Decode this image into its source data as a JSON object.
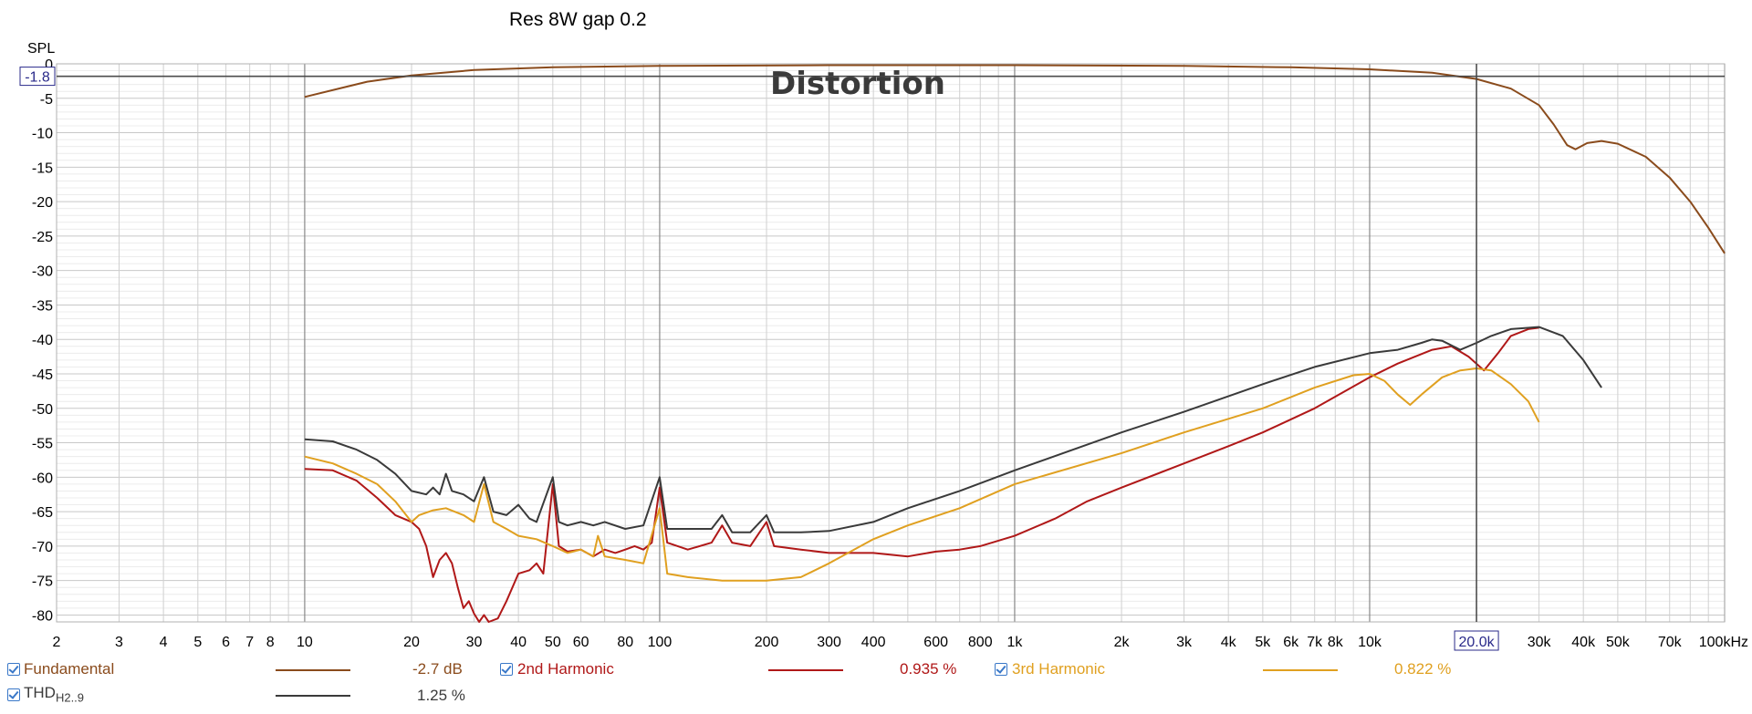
{
  "chart_data": {
    "type": "line",
    "title": "Res 8W gap 0.2",
    "overlay_label": "Distortion",
    "ylabel": "SPL",
    "ylim": [
      -81,
      0
    ],
    "xlim": [
      2,
      100000
    ],
    "xscale": "log",
    "grid": true,
    "cursor": {
      "x_label": "20.0k",
      "y_label": "-1.8",
      "x": 20000,
      "y": -1.8
    },
    "y_ticks": [
      0,
      -5,
      -10,
      -15,
      -20,
      -25,
      -30,
      -35,
      -40,
      -45,
      -50,
      -55,
      -60,
      -65,
      -70,
      -75,
      -80
    ],
    "y_tick_labels": [
      "0",
      "-5",
      "-10",
      "-15",
      "-20",
      "-25",
      "-30",
      "-35",
      "-40",
      "-45",
      "-50",
      "-55",
      "-60",
      "-65",
      "-70",
      "-75",
      "-80"
    ],
    "x_ticks": [
      2,
      3,
      4,
      5,
      6,
      7,
      8,
      10,
      20,
      30,
      40,
      50,
      60,
      80,
      100,
      200,
      300,
      400,
      600,
      800,
      1000,
      2000,
      3000,
      4000,
      5000,
      6000,
      7000,
      8000,
      10000,
      30000,
      40000,
      50000,
      70000,
      100000
    ],
    "x_tick_labels": [
      "2",
      "3",
      "4",
      "5",
      "6",
      "7",
      "8",
      "10",
      "20",
      "30",
      "40",
      "50",
      "60",
      "80",
      "100",
      "200",
      "300",
      "400",
      "600",
      "800",
      "1k",
      "2k",
      "3k",
      "4k",
      "5k",
      "6k",
      "7k",
      "8k",
      "10k",
      "30k",
      "40k",
      "50k",
      "70k",
      "100kHz"
    ],
    "series": [
      {
        "name": "Fundamental",
        "color": "#8a4b1c",
        "legend_value": "-2.7 dB",
        "points": [
          [
            10,
            -4.8
          ],
          [
            15,
            -2.6
          ],
          [
            20,
            -1.7
          ],
          [
            30,
            -0.9
          ],
          [
            50,
            -0.5
          ],
          [
            100,
            -0.3
          ],
          [
            300,
            -0.2
          ],
          [
            1000,
            -0.2
          ],
          [
            3000,
            -0.3
          ],
          [
            6000,
            -0.5
          ],
          [
            10000,
            -0.8
          ],
          [
            15000,
            -1.3
          ],
          [
            20000,
            -2.2
          ],
          [
            25000,
            -3.6
          ],
          [
            30000,
            -6.0
          ],
          [
            33000,
            -8.8
          ],
          [
            36000,
            -11.8
          ],
          [
            38000,
            -12.4
          ],
          [
            41000,
            -11.5
          ],
          [
            45000,
            -11.2
          ],
          [
            50000,
            -11.6
          ],
          [
            60000,
            -13.5
          ],
          [
            70000,
            -16.5
          ],
          [
            80000,
            -20.0
          ],
          [
            90000,
            -23.8
          ],
          [
            100000,
            -27.5
          ]
        ]
      },
      {
        "name": "2nd Harmonic",
        "color": "#b01818",
        "legend_value": "0.935 %",
        "points": [
          [
            10,
            -58.8
          ],
          [
            12,
            -59.0
          ],
          [
            14,
            -60.5
          ],
          [
            16,
            -63.0
          ],
          [
            18,
            -65.5
          ],
          [
            20,
            -66.5
          ],
          [
            21,
            -67.5
          ],
          [
            22,
            -70.0
          ],
          [
            23,
            -74.5
          ],
          [
            24,
            -72.0
          ],
          [
            25,
            -71.0
          ],
          [
            26,
            -72.5
          ],
          [
            27,
            -76.0
          ],
          [
            28,
            -79.0
          ],
          [
            29,
            -78.0
          ],
          [
            30,
            -79.8
          ],
          [
            31,
            -81.0
          ],
          [
            32,
            -80.0
          ],
          [
            33,
            -81.0
          ],
          [
            35,
            -80.5
          ],
          [
            37,
            -78.0
          ],
          [
            40,
            -74.0
          ],
          [
            43,
            -73.5
          ],
          [
            45,
            -72.5
          ],
          [
            47,
            -74.0
          ],
          [
            50,
            -61.0
          ],
          [
            52,
            -70.0
          ],
          [
            55,
            -70.8
          ],
          [
            60,
            -70.5
          ],
          [
            65,
            -71.5
          ],
          [
            70,
            -70.5
          ],
          [
            75,
            -71.0
          ],
          [
            80,
            -70.5
          ],
          [
            85,
            -70.0
          ],
          [
            90,
            -70.5
          ],
          [
            95,
            -69.5
          ],
          [
            100,
            -61.5
          ],
          [
            105,
            -69.5
          ],
          [
            120,
            -70.5
          ],
          [
            140,
            -69.5
          ],
          [
            150,
            -67.0
          ],
          [
            160,
            -69.5
          ],
          [
            180,
            -70.0
          ],
          [
            200,
            -66.5
          ],
          [
            210,
            -70.0
          ],
          [
            250,
            -70.5
          ],
          [
            300,
            -71.0
          ],
          [
            400,
            -71.0
          ],
          [
            500,
            -71.5
          ],
          [
            600,
            -70.8
          ],
          [
            700,
            -70.5
          ],
          [
            800,
            -70.0
          ],
          [
            1000,
            -68.5
          ],
          [
            1300,
            -66.0
          ],
          [
            1600,
            -63.5
          ],
          [
            2000,
            -61.5
          ],
          [
            3000,
            -58.0
          ],
          [
            4000,
            -55.5
          ],
          [
            5000,
            -53.5
          ],
          [
            7000,
            -50.0
          ],
          [
            10000,
            -45.5
          ],
          [
            12000,
            -43.5
          ],
          [
            15000,
            -41.5
          ],
          [
            17000,
            -41.0
          ],
          [
            19000,
            -42.5
          ],
          [
            21000,
            -44.5
          ],
          [
            23000,
            -42.0
          ],
          [
            25000,
            -39.5
          ],
          [
            28000,
            -38.5
          ],
          [
            30000,
            -38.3
          ]
        ]
      },
      {
        "name": "3rd Harmonic",
        "color": "#e0a020",
        "legend_value": "0.822 %",
        "points": [
          [
            10,
            -57.0
          ],
          [
            12,
            -58.0
          ],
          [
            14,
            -59.5
          ],
          [
            16,
            -61.0
          ],
          [
            18,
            -63.5
          ],
          [
            20,
            -66.5
          ],
          [
            21,
            -65.5
          ],
          [
            23,
            -64.8
          ],
          [
            25,
            -64.5
          ],
          [
            28,
            -65.5
          ],
          [
            30,
            -66.5
          ],
          [
            32,
            -61.0
          ],
          [
            34,
            -66.5
          ],
          [
            37,
            -67.5
          ],
          [
            40,
            -68.5
          ],
          [
            45,
            -69.0
          ],
          [
            50,
            -70.0
          ],
          [
            55,
            -71.0
          ],
          [
            60,
            -70.5
          ],
          [
            65,
            -71.5
          ],
          [
            67,
            -68.5
          ],
          [
            70,
            -71.5
          ],
          [
            80,
            -72.0
          ],
          [
            90,
            -72.5
          ],
          [
            100,
            -64.5
          ],
          [
            105,
            -74.0
          ],
          [
            120,
            -74.5
          ],
          [
            150,
            -75.0
          ],
          [
            200,
            -75.0
          ],
          [
            250,
            -74.5
          ],
          [
            300,
            -72.5
          ],
          [
            400,
            -69.0
          ],
          [
            500,
            -67.0
          ],
          [
            700,
            -64.5
          ],
          [
            1000,
            -61.0
          ],
          [
            2000,
            -56.5
          ],
          [
            3000,
            -53.5
          ],
          [
            5000,
            -50.0
          ],
          [
            7000,
            -47.0
          ],
          [
            9000,
            -45.2
          ],
          [
            10000,
            -45.0
          ],
          [
            11000,
            -46.0
          ],
          [
            12000,
            -48.0
          ],
          [
            13000,
            -49.5
          ],
          [
            14000,
            -48.0
          ],
          [
            16000,
            -45.5
          ],
          [
            18000,
            -44.5
          ],
          [
            20000,
            -44.2
          ],
          [
            22000,
            -44.5
          ],
          [
            25000,
            -46.5
          ],
          [
            28000,
            -49.0
          ],
          [
            30000,
            -52.0
          ]
        ]
      },
      {
        "name": "THD",
        "name_sub": "H2..9",
        "color": "#3a3a3a",
        "legend_value": "1.25 %",
        "points": [
          [
            10,
            -54.5
          ],
          [
            12,
            -54.8
          ],
          [
            14,
            -56.0
          ],
          [
            16,
            -57.5
          ],
          [
            18,
            -59.5
          ],
          [
            20,
            -62.0
          ],
          [
            22,
            -62.5
          ],
          [
            23,
            -61.5
          ],
          [
            24,
            -62.5
          ],
          [
            25,
            -59.5
          ],
          [
            26,
            -62.0
          ],
          [
            28,
            -62.5
          ],
          [
            30,
            -63.5
          ],
          [
            32,
            -60.0
          ],
          [
            34,
            -65.0
          ],
          [
            37,
            -65.5
          ],
          [
            40,
            -64.0
          ],
          [
            43,
            -66.0
          ],
          [
            45,
            -66.5
          ],
          [
            50,
            -60.0
          ],
          [
            52,
            -66.5
          ],
          [
            55,
            -67.0
          ],
          [
            60,
            -66.5
          ],
          [
            65,
            -67.0
          ],
          [
            70,
            -66.5
          ],
          [
            80,
            -67.5
          ],
          [
            90,
            -67.0
          ],
          [
            100,
            -60.0
          ],
          [
            105,
            -67.5
          ],
          [
            120,
            -67.5
          ],
          [
            140,
            -67.5
          ],
          [
            150,
            -65.5
          ],
          [
            160,
            -68.0
          ],
          [
            180,
            -68.0
          ],
          [
            200,
            -65.5
          ],
          [
            210,
            -68.0
          ],
          [
            250,
            -68.0
          ],
          [
            300,
            -67.8
          ],
          [
            400,
            -66.5
          ],
          [
            500,
            -64.5
          ],
          [
            700,
            -62.0
          ],
          [
            1000,
            -59.0
          ],
          [
            2000,
            -53.5
          ],
          [
            3000,
            -50.5
          ],
          [
            5000,
            -46.5
          ],
          [
            7000,
            -44.0
          ],
          [
            10000,
            -42.0
          ],
          [
            12000,
            -41.5
          ],
          [
            14000,
            -40.5
          ],
          [
            15000,
            -40.0
          ],
          [
            16000,
            -40.2
          ],
          [
            18000,
            -41.5
          ],
          [
            20000,
            -40.5
          ],
          [
            22000,
            -39.5
          ],
          [
            25000,
            -38.5
          ],
          [
            30000,
            -38.2
          ],
          [
            35000,
            -39.5
          ],
          [
            40000,
            -43.0
          ],
          [
            45000,
            -47.0
          ]
        ]
      }
    ]
  },
  "legend": [
    {
      "label": "Fundamental",
      "value": "-2.7 dB"
    },
    {
      "label": "2nd Harmonic",
      "value": "0.935 %"
    },
    {
      "label": "3rd Harmonic",
      "value": "0.822 %"
    },
    {
      "label": "THD",
      "sub": "H2..9",
      "value": "1.25 %"
    }
  ]
}
